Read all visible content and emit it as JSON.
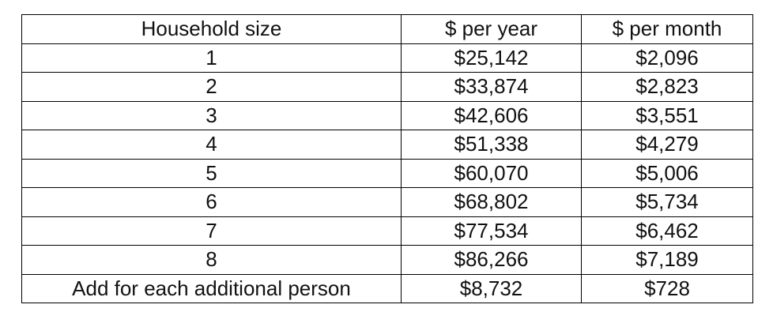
{
  "table": {
    "header": [
      "Household size",
      "$ per year",
      "$ per month"
    ],
    "rows": [
      [
        "1",
        "$25,142",
        "$2,096"
      ],
      [
        "2",
        "$33,874",
        "$2,823"
      ],
      [
        "3",
        "$42,606",
        "$3,551"
      ],
      [
        "4",
        "$51,338",
        "$4,279"
      ],
      [
        "5",
        "$60,070",
        "$5,006"
      ],
      [
        "6",
        "$68,802",
        "$5,734"
      ],
      [
        "7",
        "$77,534",
        "$6,462"
      ],
      [
        "8",
        "$86,266",
        "$7,189"
      ],
      [
        "Add for each additional person",
        "$8,732",
        "$728"
      ]
    ]
  }
}
